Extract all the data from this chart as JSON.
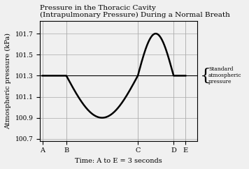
{
  "title_line1": "Pressure in the Thoracic Cavity",
  "title_line2": "(Intrapulmonary Pressure) During a Normal Breath",
  "ylabel": "Atmospheric pressure (kPa)",
  "xlabel": "Time: A to E = 3 seconds",
  "x_labels": [
    "A",
    "B",
    "C",
    "D",
    "E"
  ],
  "x_positions": [
    0.0,
    0.5,
    2.0,
    2.75,
    3.0
  ],
  "yticks": [
    100.7,
    100.9,
    101.1,
    101.3,
    101.5,
    101.7
  ],
  "ylim": [
    100.68,
    101.82
  ],
  "xlim": [
    -0.05,
    3.25
  ],
  "ref_pressure": 101.3,
  "std_atm_label": [
    "Standard",
    "atmospheric",
    "pressure"
  ],
  "bg_color": "#f0f0f0",
  "line_color": "#000000",
  "grid_color": "#aaaaaa",
  "title_fontsize": 7.5,
  "axis_label_fontsize": 7,
  "tick_fontsize": 6.5,
  "dip_amplitude": -0.4,
  "rise_amplitude": 0.4,
  "seg_b": 0.5,
  "seg_c": 2.0,
  "seg_d": 2.75,
  "seg_e": 3.0
}
